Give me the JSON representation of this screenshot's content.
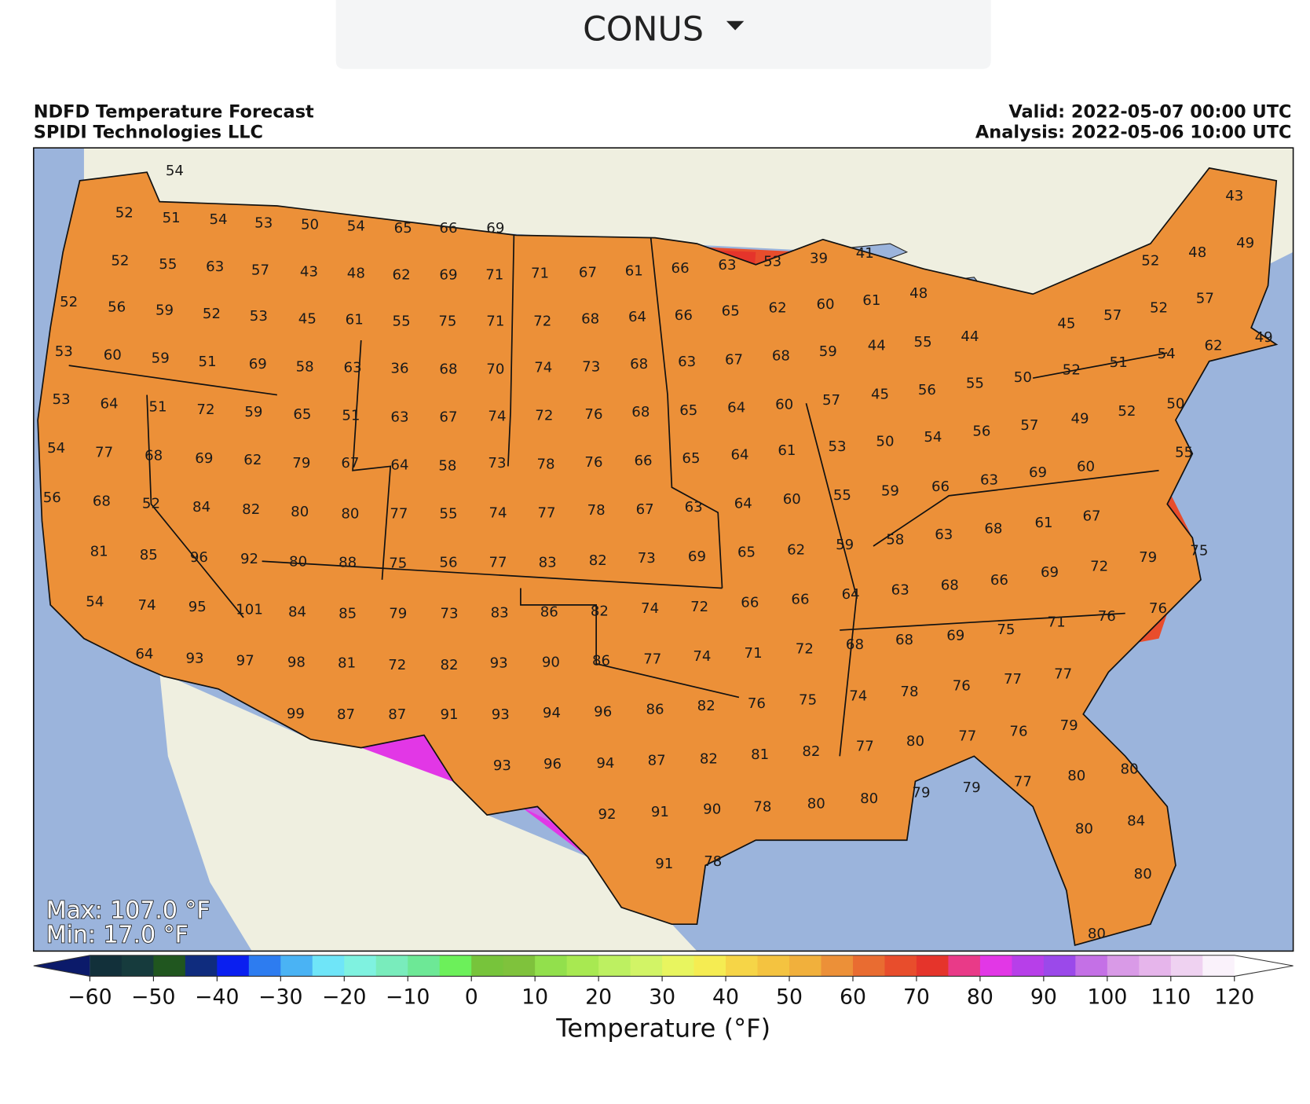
{
  "header": {
    "dropdown": "CONUS"
  },
  "map": {
    "title": "NDFD Temperature Forecast",
    "credit": "SPIDI Technologies LLC",
    "valid": "Valid: 2022-05-07 00:00 UTC",
    "analysis": "Analysis: 2022-05-06 10:00 UTC",
    "max_label": "Max: 107.0 °F",
    "min_label": "Min: 17.0 °F",
    "station_values": [
      54,
      52,
      51,
      54,
      53,
      50,
      54,
      65,
      66,
      69,
      43,
      52,
      55,
      63,
      57,
      43,
      48,
      62,
      69,
      71,
      71,
      67,
      61,
      66,
      63,
      53,
      39,
      41,
      52,
      48,
      49,
      52,
      56,
      59,
      52,
      53,
      45,
      61,
      55,
      75,
      71,
      72,
      68,
      64,
      66,
      65,
      62,
      60,
      61,
      48,
      57,
      52,
      57,
      45,
      49,
      53,
      60,
      59,
      51,
      69,
      58,
      63,
      36,
      68,
      70,
      74,
      73,
      68,
      63,
      67,
      68,
      59,
      44,
      55,
      44,
      54,
      62,
      51,
      52,
      53,
      64,
      51,
      72,
      59,
      65,
      51,
      63,
      67,
      74,
      72,
      76,
      68,
      65,
      64,
      60,
      57,
      45,
      56,
      55,
      50,
      49,
      52,
      50,
      57,
      56,
      54,
      50,
      53,
      54,
      77,
      68,
      69,
      62,
      79,
      67,
      64,
      58,
      73,
      78,
      76,
      66,
      65,
      64,
      61,
      55,
      60,
      69,
      63,
      66,
      59,
      55,
      60,
      64,
      63,
      67,
      78,
      77,
      74,
      55,
      77,
      80,
      80,
      82,
      84,
      52,
      68,
      56,
      81,
      85,
      96,
      92,
      80,
      88,
      75,
      56,
      77,
      83,
      82,
      73,
      69,
      65,
      62,
      59,
      58,
      63,
      68,
      61,
      67,
      75,
      79,
      72,
      69,
      66,
      68,
      63,
      64,
      66,
      66,
      72,
      74,
      82,
      86,
      83,
      73,
      79,
      85,
      84,
      101,
      95,
      74,
      54,
      64,
      93,
      97,
      98,
      81,
      72,
      82,
      93,
      90,
      86,
      77,
      74,
      71,
      72,
      68,
      68,
      69,
      75,
      71,
      76,
      76,
      99,
      87,
      87,
      91,
      93,
      94,
      96,
      86,
      82,
      76,
      75,
      74,
      78,
      76,
      77,
      77,
      79,
      76,
      77,
      80,
      77,
      82,
      81,
      82,
      87,
      94,
      96,
      93,
      92,
      91,
      90,
      78,
      80,
      80,
      79,
      79,
      77,
      80,
      80,
      84,
      80,
      80,
      80,
      91,
      78
    ]
  },
  "colorbar": {
    "label": "Temperature (°F)",
    "range": [
      -60,
      120
    ],
    "ticks": [
      {
        "value": -60,
        "label": "−60"
      },
      {
        "value": -50,
        "label": "−50"
      },
      {
        "value": -40,
        "label": "−40"
      },
      {
        "value": -30,
        "label": "−30"
      },
      {
        "value": -20,
        "label": "−20"
      },
      {
        "value": -10,
        "label": "−10"
      },
      0,
      10,
      20,
      30,
      40,
      50,
      60,
      70,
      80,
      90,
      100,
      110,
      120
    ],
    "colors": [
      "#12303a",
      "#163b3d",
      "#20561f",
      "#0f2c7e",
      "#0a1ff0",
      "#2d7cf0",
      "#4ab3f4",
      "#6fe5f8",
      "#7ff2e0",
      "#79ecbc",
      "#6de896",
      "#6cf05a",
      "#77c43b",
      "#7fc23c",
      "#92e04c",
      "#a8e951",
      "#bdf061",
      "#d2f466",
      "#e8f55f",
      "#f5ec52",
      "#f6d547",
      "#f4c340",
      "#f1b03c",
      "#ec9038",
      "#e96c31",
      "#e84d2c",
      "#e5342b",
      "#e93a88",
      "#e237e6",
      "#b73fe9",
      "#9b49ea",
      "#c470e6",
      "#d99ae7",
      "#e6b5eb",
      "#efd2f1",
      "#faf2fb"
    ],
    "extend_colors": [
      "#0b1a6a",
      "#ffffff"
    ]
  }
}
